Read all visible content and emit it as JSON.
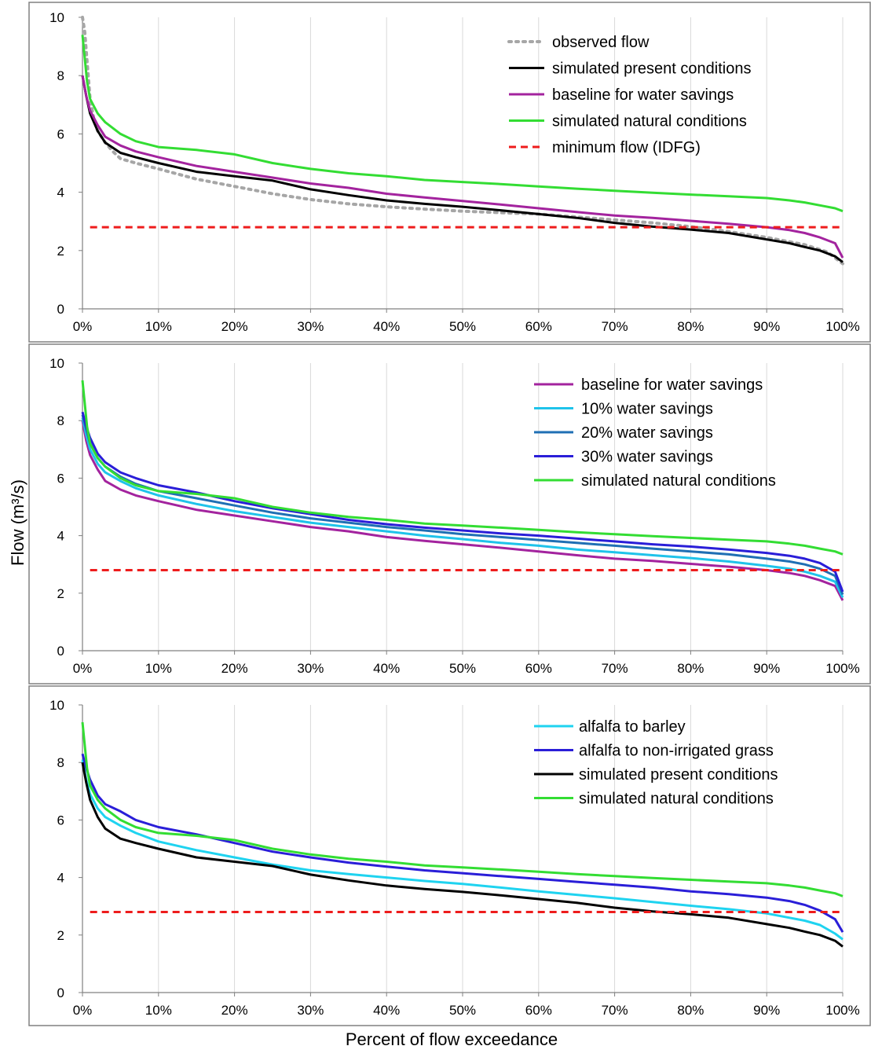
{
  "figure": {
    "ylabel": "Flow (m³/s)",
    "xlabel": "Percent of flow exceedance"
  },
  "colors": {
    "observed": "#a6a6a6",
    "present": "#000000",
    "baseline": "#a3239e",
    "natural": "#33dd33",
    "minimum": "#ee1c1c",
    "savings10": "#1fc3ea",
    "savings20": "#1f6fb4",
    "savings30": "#2a1ed8",
    "barley": "#1fd3f0",
    "grass": "#2a1ed8"
  },
  "chart_data": [
    {
      "type": "line",
      "xlabel": "",
      "ylabel": "",
      "xlim": [
        0,
        100
      ],
      "ylim": [
        0,
        10
      ],
      "x_ticks": [
        "0%",
        "10%",
        "20%",
        "30%",
        "40%",
        "50%",
        "60%",
        "70%",
        "80%",
        "90%",
        "100%"
      ],
      "y_ticks": [
        "0",
        "2",
        "4",
        "6",
        "8",
        "10"
      ],
      "grid": "vertical",
      "legend_position": "top-right",
      "series": [
        {
          "name": "observed flow",
          "color_key": "observed",
          "style": "dotted",
          "x": [
            0,
            0.3,
            0.6,
            1,
            1.5,
            2,
            3,
            4,
            5,
            7,
            10,
            15,
            20,
            25,
            30,
            35,
            40,
            45,
            50,
            55,
            60,
            65,
            70,
            75,
            80,
            85,
            90,
            95,
            98,
            100
          ],
          "y": [
            10,
            9.5,
            8.5,
            7.2,
            6.5,
            6.1,
            5.7,
            5.4,
            5.15,
            5.0,
            4.8,
            4.45,
            4.2,
            3.95,
            3.75,
            3.6,
            3.5,
            3.42,
            3.35,
            3.3,
            3.25,
            3.15,
            3.05,
            2.95,
            2.82,
            2.65,
            2.45,
            2.2,
            1.95,
            1.55
          ]
        },
        {
          "name": "simulated present conditions",
          "color_key": "present",
          "style": "solid",
          "x": [
            0,
            0.5,
            1,
            2,
            3,
            5,
            7,
            10,
            15,
            20,
            25,
            30,
            35,
            40,
            45,
            50,
            55,
            60,
            65,
            70,
            75,
            80,
            85,
            90,
            93,
            95,
            97,
            99,
            100
          ],
          "y": [
            8.0,
            7.3,
            6.7,
            6.1,
            5.7,
            5.35,
            5.2,
            5.0,
            4.7,
            4.55,
            4.4,
            4.1,
            3.9,
            3.72,
            3.6,
            3.5,
            3.38,
            3.25,
            3.12,
            2.95,
            2.82,
            2.72,
            2.6,
            2.38,
            2.25,
            2.12,
            2.0,
            1.8,
            1.6
          ]
        },
        {
          "name": "baseline for water savings",
          "color_key": "baseline",
          "style": "solid",
          "x": [
            0,
            0.5,
            1,
            2,
            3,
            5,
            7,
            10,
            15,
            20,
            25,
            30,
            35,
            40,
            45,
            50,
            55,
            60,
            65,
            70,
            75,
            80,
            85,
            90,
            93,
            95,
            97,
            99,
            100
          ],
          "y": [
            8.0,
            7.3,
            6.8,
            6.3,
            5.9,
            5.6,
            5.4,
            5.2,
            4.9,
            4.7,
            4.5,
            4.3,
            4.15,
            3.95,
            3.82,
            3.7,
            3.58,
            3.45,
            3.32,
            3.2,
            3.12,
            3.02,
            2.92,
            2.8,
            2.7,
            2.6,
            2.45,
            2.25,
            1.75
          ]
        },
        {
          "name": "simulated natural conditions",
          "color_key": "natural",
          "style": "solid",
          "x": [
            0,
            0.3,
            0.6,
            1,
            2,
            3,
            5,
            7,
            10,
            15,
            20,
            25,
            30,
            35,
            40,
            45,
            50,
            55,
            60,
            65,
            70,
            75,
            80,
            85,
            90,
            93,
            95,
            97,
            99,
            100
          ],
          "y": [
            9.4,
            8.6,
            7.8,
            7.2,
            6.7,
            6.4,
            6.0,
            5.75,
            5.55,
            5.45,
            5.3,
            5.0,
            4.8,
            4.65,
            4.55,
            4.42,
            4.35,
            4.28,
            4.2,
            4.12,
            4.05,
            3.98,
            3.92,
            3.86,
            3.8,
            3.72,
            3.65,
            3.55,
            3.45,
            3.35
          ]
        },
        {
          "name": "minimum flow (IDFG)",
          "color_key": "minimum",
          "style": "dashed",
          "x": [
            1,
            100
          ],
          "y": [
            2.8,
            2.8
          ]
        }
      ]
    },
    {
      "type": "line",
      "xlabel": "",
      "ylabel": "",
      "xlim": [
        0,
        100
      ],
      "ylim": [
        0,
        10
      ],
      "x_ticks": [
        "0%",
        "10%",
        "20%",
        "30%",
        "40%",
        "50%",
        "60%",
        "70%",
        "80%",
        "90%",
        "100%"
      ],
      "y_ticks": [
        "0",
        "2",
        "4",
        "6",
        "8",
        "10"
      ],
      "grid": "vertical",
      "legend_position": "top-right",
      "series": [
        {
          "name": "baseline for water savings",
          "color_key": "baseline",
          "style": "solid",
          "x": [
            0,
            0.5,
            1,
            2,
            3,
            5,
            7,
            10,
            15,
            20,
            25,
            30,
            35,
            40,
            45,
            50,
            55,
            60,
            65,
            70,
            75,
            80,
            85,
            90,
            93,
            95,
            97,
            99,
            100
          ],
          "y": [
            8.0,
            7.3,
            6.8,
            6.3,
            5.9,
            5.6,
            5.4,
            5.2,
            4.9,
            4.7,
            4.5,
            4.3,
            4.15,
            3.95,
            3.82,
            3.7,
            3.58,
            3.45,
            3.32,
            3.2,
            3.12,
            3.02,
            2.92,
            2.8,
            2.7,
            2.6,
            2.45,
            2.25,
            1.75
          ]
        },
        {
          "name": "10% water savings",
          "color_key": "savings10",
          "style": "solid",
          "x": [
            0,
            0.5,
            1,
            2,
            3,
            5,
            7,
            10,
            15,
            20,
            25,
            30,
            35,
            40,
            45,
            50,
            55,
            60,
            65,
            70,
            75,
            80,
            85,
            90,
            93,
            95,
            97,
            99,
            100
          ],
          "y": [
            8.1,
            7.5,
            7.0,
            6.5,
            6.2,
            5.9,
            5.65,
            5.4,
            5.1,
            4.85,
            4.65,
            4.45,
            4.3,
            4.15,
            4.0,
            3.88,
            3.75,
            3.65,
            3.52,
            3.42,
            3.32,
            3.22,
            3.1,
            2.95,
            2.85,
            2.75,
            2.6,
            2.4,
            1.85
          ]
        },
        {
          "name": "20% water savings",
          "color_key": "savings20",
          "style": "solid",
          "x": [
            0,
            0.5,
            1,
            2,
            3,
            5,
            7,
            10,
            15,
            20,
            25,
            30,
            35,
            40,
            45,
            50,
            55,
            60,
            65,
            70,
            75,
            80,
            85,
            90,
            93,
            95,
            97,
            99,
            100
          ],
          "y": [
            8.2,
            7.7,
            7.2,
            6.7,
            6.4,
            6.05,
            5.8,
            5.55,
            5.3,
            5.05,
            4.8,
            4.6,
            4.45,
            4.3,
            4.18,
            4.05,
            3.95,
            3.85,
            3.75,
            3.65,
            3.55,
            3.45,
            3.35,
            3.2,
            3.1,
            3.0,
            2.85,
            2.6,
            1.95
          ]
        },
        {
          "name": "30% water savings",
          "color_key": "savings30",
          "style": "solid",
          "x": [
            0,
            0.5,
            1,
            2,
            3,
            5,
            7,
            10,
            15,
            20,
            25,
            30,
            35,
            40,
            45,
            50,
            55,
            60,
            65,
            70,
            75,
            80,
            85,
            90,
            93,
            95,
            97,
            99,
            100
          ],
          "y": [
            8.3,
            7.8,
            7.4,
            6.85,
            6.55,
            6.2,
            6.0,
            5.75,
            5.5,
            5.2,
            4.95,
            4.75,
            4.55,
            4.4,
            4.28,
            4.18,
            4.08,
            4.0,
            3.9,
            3.8,
            3.7,
            3.62,
            3.52,
            3.4,
            3.3,
            3.2,
            3.05,
            2.75,
            2.05
          ]
        },
        {
          "name": "simulated natural conditions",
          "color_key": "natural",
          "style": "solid",
          "x": [
            0,
            0.3,
            0.6,
            1,
            2,
            3,
            5,
            7,
            10,
            15,
            20,
            25,
            30,
            35,
            40,
            45,
            50,
            55,
            60,
            65,
            70,
            75,
            80,
            85,
            90,
            93,
            95,
            97,
            99,
            100
          ],
          "y": [
            9.4,
            8.6,
            7.8,
            7.2,
            6.7,
            6.4,
            6.0,
            5.75,
            5.55,
            5.45,
            5.3,
            5.0,
            4.8,
            4.65,
            4.55,
            4.42,
            4.35,
            4.28,
            4.2,
            4.12,
            4.05,
            3.98,
            3.92,
            3.86,
            3.8,
            3.72,
            3.65,
            3.55,
            3.45,
            3.35
          ]
        },
        {
          "name": "",
          "color_key": "minimum",
          "style": "dashed",
          "x": [
            1,
            100
          ],
          "y": [
            2.8,
            2.8
          ]
        }
      ]
    },
    {
      "type": "line",
      "xlabel": "",
      "ylabel": "",
      "xlim": [
        0,
        100
      ],
      "ylim": [
        0,
        10
      ],
      "x_ticks": [
        "0%",
        "10%",
        "20%",
        "30%",
        "40%",
        "50%",
        "60%",
        "70%",
        "80%",
        "90%",
        "100%"
      ],
      "y_ticks": [
        "0",
        "2",
        "4",
        "6",
        "8",
        "10"
      ],
      "grid": "vertical",
      "legend_position": "top-right",
      "series": [
        {
          "name": "alfalfa to barley",
          "color_key": "barley",
          "style": "solid",
          "x": [
            0,
            0.5,
            1,
            2,
            3,
            5,
            7,
            10,
            15,
            20,
            25,
            30,
            35,
            40,
            45,
            50,
            55,
            60,
            65,
            70,
            75,
            80,
            85,
            90,
            93,
            95,
            97,
            99,
            100
          ],
          "y": [
            8.1,
            7.4,
            6.9,
            6.4,
            6.1,
            5.8,
            5.55,
            5.25,
            4.95,
            4.7,
            4.45,
            4.25,
            4.12,
            4.0,
            3.88,
            3.78,
            3.65,
            3.52,
            3.4,
            3.28,
            3.15,
            3.02,
            2.9,
            2.75,
            2.6,
            2.5,
            2.35,
            2.05,
            1.85
          ]
        },
        {
          "name": "alfalfa to non-irrigated grass",
          "color_key": "grass",
          "style": "solid",
          "x": [
            0,
            0.5,
            1,
            2,
            3,
            5,
            7,
            10,
            15,
            20,
            25,
            30,
            35,
            40,
            45,
            50,
            55,
            60,
            65,
            70,
            75,
            80,
            85,
            90,
            93,
            95,
            97,
            99,
            100
          ],
          "y": [
            8.3,
            7.8,
            7.4,
            6.85,
            6.55,
            6.3,
            6.0,
            5.75,
            5.5,
            5.2,
            4.9,
            4.7,
            4.52,
            4.38,
            4.25,
            4.15,
            4.05,
            3.95,
            3.85,
            3.75,
            3.65,
            3.52,
            3.42,
            3.3,
            3.18,
            3.05,
            2.85,
            2.55,
            2.1
          ]
        },
        {
          "name": "simulated present conditions",
          "color_key": "present",
          "style": "solid",
          "x": [
            0,
            0.5,
            1,
            2,
            3,
            5,
            7,
            10,
            15,
            20,
            25,
            30,
            35,
            40,
            45,
            50,
            55,
            60,
            65,
            70,
            75,
            80,
            85,
            90,
            93,
            95,
            97,
            99,
            100
          ],
          "y": [
            8.0,
            7.3,
            6.7,
            6.1,
            5.7,
            5.35,
            5.2,
            5.0,
            4.7,
            4.55,
            4.4,
            4.1,
            3.9,
            3.72,
            3.6,
            3.5,
            3.38,
            3.25,
            3.12,
            2.95,
            2.82,
            2.72,
            2.6,
            2.38,
            2.25,
            2.12,
            2.0,
            1.8,
            1.6
          ]
        },
        {
          "name": "simulated natural conditions",
          "color_key": "natural",
          "style": "solid",
          "x": [
            0,
            0.3,
            0.6,
            1,
            2,
            3,
            5,
            7,
            10,
            15,
            20,
            25,
            30,
            35,
            40,
            45,
            50,
            55,
            60,
            65,
            70,
            75,
            80,
            85,
            90,
            93,
            95,
            97,
            99,
            100
          ],
          "y": [
            9.4,
            8.6,
            7.8,
            7.2,
            6.7,
            6.4,
            6.0,
            5.75,
            5.55,
            5.45,
            5.3,
            5.0,
            4.8,
            4.65,
            4.55,
            4.42,
            4.35,
            4.28,
            4.2,
            4.12,
            4.05,
            3.98,
            3.92,
            3.86,
            3.8,
            3.72,
            3.65,
            3.55,
            3.45,
            3.35
          ]
        },
        {
          "name": "",
          "color_key": "minimum",
          "style": "dashed",
          "x": [
            1,
            100
          ],
          "y": [
            2.8,
            2.8
          ]
        }
      ]
    }
  ]
}
